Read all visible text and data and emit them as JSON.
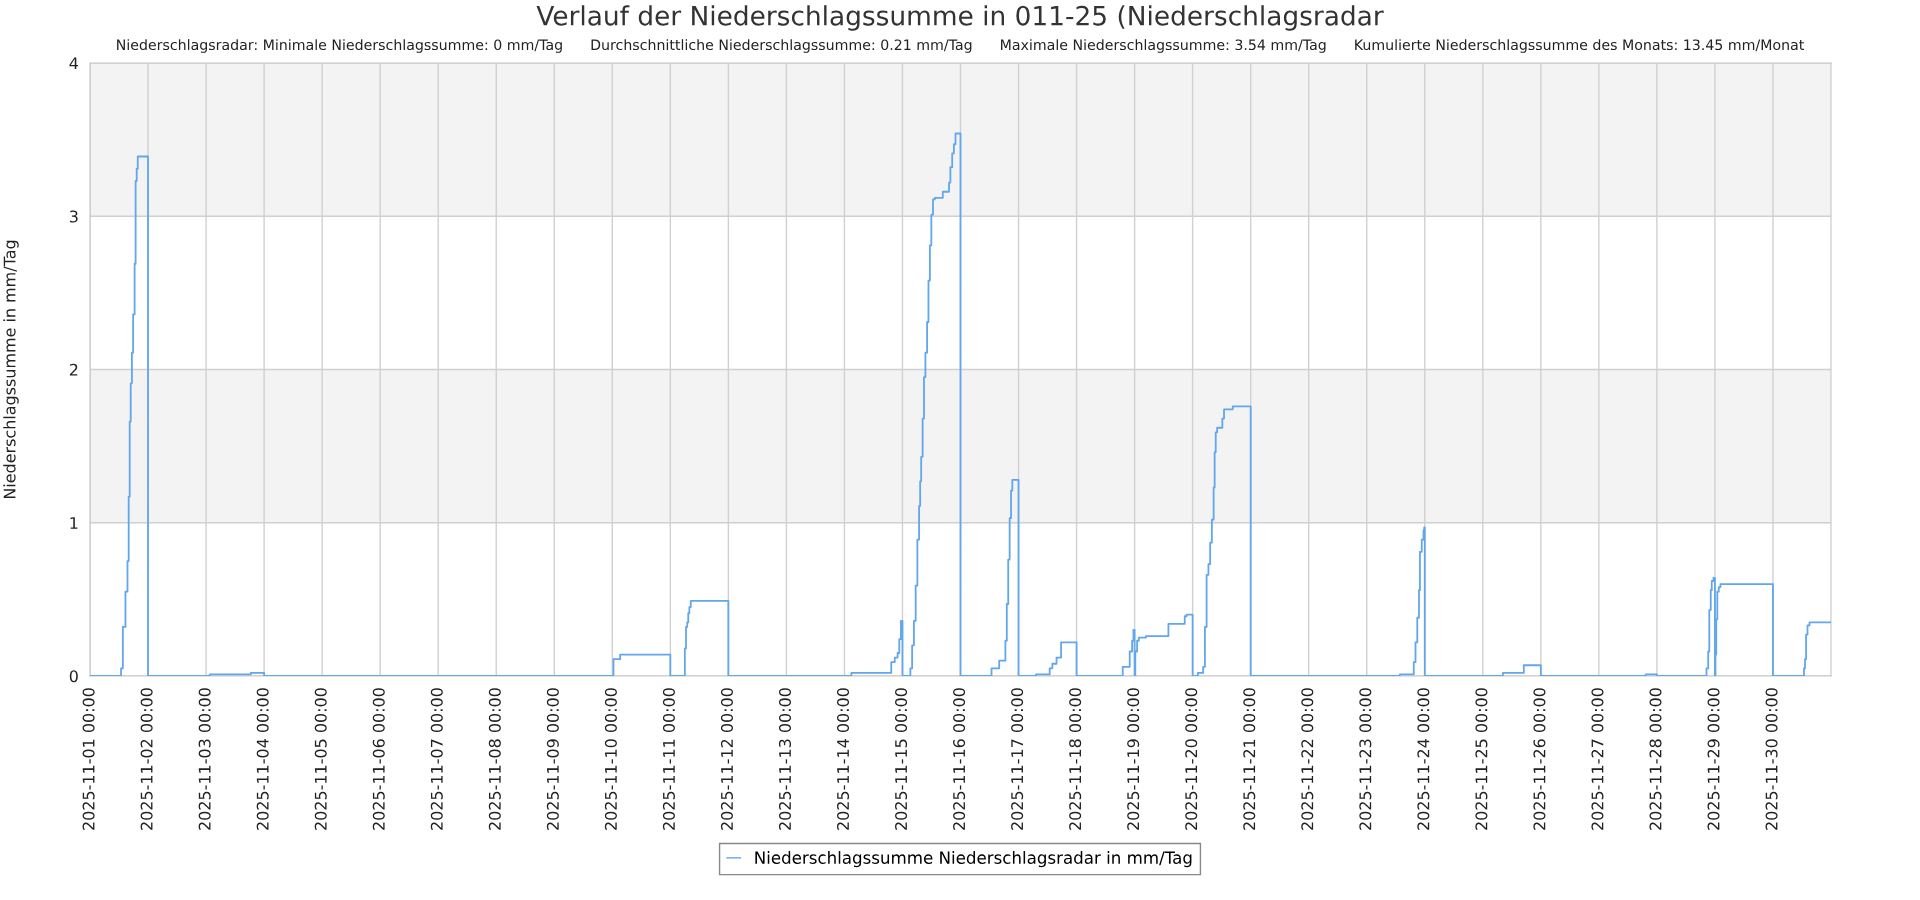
{
  "chart_data": {
    "type": "step",
    "title": "Verlauf der Niederschlagssumme in 011-25 (Niederschlagsradar",
    "subtitle": "Niederschlagsradar: Minimale Niederschlagssumme: 0 mm/Tag      Durchschnittliche Niederschlagssumme: 0.21 mm/Tag      Maximale Niederschlagssumme: 3.54 mm/Tag      Kumulierte Niederschlagssumme des Monats: 13.45 mm/Monat",
    "ylabel": "Niederschlagssumme in mm/Tag",
    "series": [
      {
        "name": "Niederschlagssumme Niederschlagsradar in mm/Tag",
        "color": "#62a6ec",
        "x": [
          "2025-11-01T00:00",
          "2025-11-01T12:50",
          "2025-11-01T13:35",
          "2025-11-01T14:40",
          "2025-11-01T15:30",
          "2025-11-01T16:00",
          "2025-11-01T16:25",
          "2025-11-01T16:50",
          "2025-11-01T17:20",
          "2025-11-01T17:50",
          "2025-11-01T18:27",
          "2025-11-01T18:52",
          "2025-11-01T19:19",
          "2025-11-01T19:45",
          "2025-11-02T00:00",
          "2025-11-03T01:30",
          "2025-11-03T18:30",
          "2025-11-04T00:00",
          "2025-11-10T00:29",
          "2025-11-10T03:15",
          "2025-11-11T00:00",
          "2025-11-11T06:00",
          "2025-11-11T06:29",
          "2025-11-11T06:59",
          "2025-11-11T07:25",
          "2025-11-11T07:52",
          "2025-11-11T08:27",
          "2025-11-12T00:00",
          "2025-11-14T02:53",
          "2025-11-14T19:22",
          "2025-11-14T20:48",
          "2025-11-14T21:59",
          "2025-11-14T22:41",
          "2025-11-14T23:22",
          "2025-11-15T00:00",
          "2025-11-15T03:16",
          "2025-11-15T04:00",
          "2025-11-15T04:44",
          "2025-11-15T05:28",
          "2025-11-15T06:10",
          "2025-11-15T06:52",
          "2025-11-15T07:19",
          "2025-11-15T07:44",
          "2025-11-15T08:20",
          "2025-11-15T08:54",
          "2025-11-15T09:29",
          "2025-11-15T10:11",
          "2025-11-15T10:45",
          "2025-11-15T11:20",
          "2025-11-15T11:56",
          "2025-11-15T12:37",
          "2025-11-15T13:22",
          "2025-11-15T16:41",
          "2025-11-15T19:15",
          "2025-11-15T19:49",
          "2025-11-15T20:34",
          "2025-11-15T21:16",
          "2025-11-15T21:56",
          "2025-11-16T00:00",
          "2025-11-16T12:50",
          "2025-11-16T16:00",
          "2025-11-16T18:34",
          "2025-11-16T19:09",
          "2025-11-16T19:44",
          "2025-11-16T20:20",
          "2025-11-16T20:54",
          "2025-11-16T21:26",
          "2025-11-17T00:00",
          "2025-11-17T07:12",
          "2025-11-17T12:53",
          "2025-11-17T13:59",
          "2025-11-17T15:43",
          "2025-11-17T17:36",
          "2025-11-18T00:00",
          "2025-11-18T19:05",
          "2025-11-18T21:59",
          "2025-11-18T22:58",
          "2025-11-18T23:31",
          "2025-11-19T00:00",
          "2025-11-19T00:17",
          "2025-11-19T01:02",
          "2025-11-19T01:44",
          "2025-11-19T04:38",
          "2025-11-19T13:59",
          "2025-11-19T20:44",
          "2025-11-19T21:30",
          "2025-11-20T00:00",
          "2025-11-20T02:11",
          "2025-11-20T04:21",
          "2025-11-20T05:05",
          "2025-11-20T05:47",
          "2025-11-20T06:32",
          "2025-11-20T07:15",
          "2025-11-20T07:57",
          "2025-11-20T08:41",
          "2025-11-20T09:06",
          "2025-11-20T09:33",
          "2025-11-20T10:08",
          "2025-11-20T12:17",
          "2025-11-20T12:59",
          "2025-11-20T16:35",
          "2025-11-21T00:00",
          "2025-11-23T13:42",
          "2025-11-23T19:27",
          "2025-11-23T20:10",
          "2025-11-23T20:54",
          "2025-11-23T21:36",
          "2025-11-23T22:00",
          "2025-11-23T22:45",
          "2025-11-23T23:28",
          "2025-11-23T23:45",
          "2025-11-24T00:00",
          "2025-11-25T08:18",
          "2025-11-25T16:58",
          "2025-11-26T00:00",
          "2025-11-27T19:19",
          "2025-11-28T00:00",
          "2025-11-28T20:31",
          "2025-11-28T21:13",
          "2025-11-28T21:40",
          "2025-11-28T22:16",
          "2025-11-28T22:41",
          "2025-11-28T23:23",
          "2025-11-29T00:00",
          "2025-11-29T00:14",
          "2025-11-29T00:32",
          "2025-11-29T00:59",
          "2025-11-29T01:35",
          "2025-11-29T02:17",
          "2025-11-30T00:00",
          "2025-11-30T12:49",
          "2025-11-30T13:15",
          "2025-11-30T13:42",
          "2025-11-30T14:17",
          "2025-11-30T15:06",
          "2025-12-01T00:00"
        ],
        "values": [
          0,
          0.05,
          0.32,
          0.55,
          0.75,
          1.17,
          1.66,
          1.91,
          2.11,
          2.36,
          2.69,
          3.23,
          3.31,
          3.39,
          0,
          0.01,
          0.02,
          0,
          0.11,
          0.14,
          0,
          0.18,
          0.32,
          0.35,
          0.41,
          0.45,
          0.49,
          0,
          0.02,
          0.09,
          0.12,
          0.15,
          0.24,
          0.36,
          0,
          0.05,
          0.2,
          0.36,
          0.59,
          0.89,
          1.11,
          1.27,
          1.43,
          1.68,
          1.95,
          2.11,
          2.31,
          2.58,
          2.81,
          3.01,
          3.11,
          3.12,
          3.16,
          3.22,
          3.32,
          3.41,
          3.47,
          3.54,
          0,
          0.05,
          0.1,
          0.23,
          0.47,
          0.76,
          1.03,
          1.21,
          1.28,
          0,
          0.01,
          0.05,
          0.08,
          0.12,
          0.22,
          0,
          0.06,
          0.16,
          0.23,
          0.3,
          0,
          0.16,
          0.23,
          0.25,
          0.26,
          0.34,
          0.39,
          0.4,
          0,
          0.02,
          0.06,
          0.32,
          0.66,
          0.73,
          0.87,
          1.02,
          1.23,
          1.46,
          1.59,
          1.62,
          1.68,
          1.74,
          1.76,
          0,
          0.01,
          0.09,
          0.22,
          0.38,
          0.56,
          0.81,
          0.89,
          0.95,
          0.97,
          0,
          0.02,
          0.07,
          0,
          0.01,
          0,
          0.05,
          0.16,
          0.43,
          0.56,
          0.62,
          0.64,
          0,
          0.14,
          0.37,
          0.55,
          0.58,
          0.6,
          0,
          0.05,
          0.11,
          0.27,
          0.33,
          0.35,
          0.35
        ]
      }
    ],
    "xlim": [
      "2025-11-01T00:00",
      "2025-12-01T00:00"
    ],
    "xticks": [
      {
        "value": "2025-11-01T00:00",
        "label": "2025-11-01 00:00"
      },
      {
        "value": "2025-11-02T00:00",
        "label": "2025-11-02 00:00"
      },
      {
        "value": "2025-11-03T00:00",
        "label": "2025-11-03 00:00"
      },
      {
        "value": "2025-11-04T00:00",
        "label": "2025-11-04 00:00"
      },
      {
        "value": "2025-11-05T00:00",
        "label": "2025-11-05 00:00"
      },
      {
        "value": "2025-11-06T00:00",
        "label": "2025-11-06 00:00"
      },
      {
        "value": "2025-11-07T00:00",
        "label": "2025-11-07 00:00"
      },
      {
        "value": "2025-11-08T00:00",
        "label": "2025-11-08 00:00"
      },
      {
        "value": "2025-11-09T00:00",
        "label": "2025-11-09 00:00"
      },
      {
        "value": "2025-11-10T00:00",
        "label": "2025-11-10 00:00"
      },
      {
        "value": "2025-11-11T00:00",
        "label": "2025-11-11 00:00"
      },
      {
        "value": "2025-11-12T00:00",
        "label": "2025-11-12 00:00"
      },
      {
        "value": "2025-11-13T00:00",
        "label": "2025-11-13 00:00"
      },
      {
        "value": "2025-11-14T00:00",
        "label": "2025-11-14 00:00"
      },
      {
        "value": "2025-11-15T00:00",
        "label": "2025-11-15 00:00"
      },
      {
        "value": "2025-11-16T00:00",
        "label": "2025-11-16 00:00"
      },
      {
        "value": "2025-11-17T00:00",
        "label": "2025-11-17 00:00"
      },
      {
        "value": "2025-11-18T00:00",
        "label": "2025-11-18 00:00"
      },
      {
        "value": "2025-11-19T00:00",
        "label": "2025-11-19 00:00"
      },
      {
        "value": "2025-11-20T00:00",
        "label": "2025-11-20 00:00"
      },
      {
        "value": "2025-11-21T00:00",
        "label": "2025-11-21 00:00"
      },
      {
        "value": "2025-11-22T00:00",
        "label": "2025-11-22 00:00"
      },
      {
        "value": "2025-11-23T00:00",
        "label": "2025-11-23 00:00"
      },
      {
        "value": "2025-11-24T00:00",
        "label": "2025-11-24 00:00"
      },
      {
        "value": "2025-11-25T00:00",
        "label": "2025-11-25 00:00"
      },
      {
        "value": "2025-11-26T00:00",
        "label": "2025-11-26 00:00"
      },
      {
        "value": "2025-11-27T00:00",
        "label": "2025-11-27 00:00"
      },
      {
        "value": "2025-11-28T00:00",
        "label": "2025-11-28 00:00"
      },
      {
        "value": "2025-11-29T00:00",
        "label": "2025-11-29 00:00"
      },
      {
        "value": "2025-11-30T00:00",
        "label": "2025-11-30 00:00"
      }
    ],
    "ylim": [
      0,
      4
    ],
    "yticks": [
      0,
      1,
      2,
      3,
      4
    ],
    "bands": [
      {
        "axis": "y",
        "from": 1,
        "to": 2,
        "color": "#f3f3f3"
      },
      {
        "axis": "y",
        "from": 3,
        "to": 4,
        "color": "#f3f3f3"
      }
    ],
    "grid": true,
    "legend": "bottom"
  }
}
